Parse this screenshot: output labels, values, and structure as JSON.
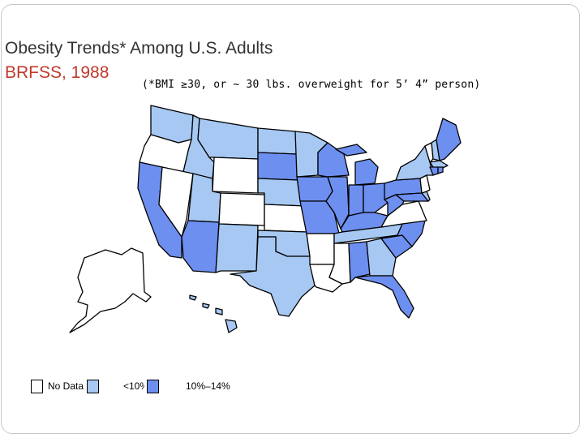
{
  "title": "Obesity Trends* Among U.S. Adults",
  "subtitle": "BRFSS, 1988",
  "note": "(*BMI ≥30, or ~ 30 lbs. overweight for 5’ 4” person)",
  "colors": {
    "no_data": "#ffffff",
    "under_10": "#a6c8f2",
    "10_14": "#6d8fef",
    "title_accent": "#c0392b"
  },
  "legend": [
    {
      "label": "No Data",
      "color": "#ffffff"
    },
    {
      "label": "<10%",
      "color": "#a6c8f2"
    },
    {
      "label": "10%–14%",
      "color": "#6d8fef"
    }
  ],
  "map_data": {
    "no_data": [
      "Oregon",
      "Nevada",
      "Wyoming",
      "Colorado",
      "Kansas",
      "Arkansas",
      "Mississippi",
      "Louisiana",
      "Alaska",
      "Virginia",
      "Vermont",
      "New Jersey"
    ],
    "under_10": [
      "Washington",
      "Idaho",
      "Montana",
      "Utah",
      "New Mexico",
      "Texas",
      "Oklahoma",
      "Nebraska",
      "North Dakota",
      "Minnesota",
      "Georgia",
      "Tennessee",
      "New York",
      "Hawaii",
      "New Hampshire",
      "Massachusetts",
      "Delaware"
    ],
    "10_14": [
      "California",
      "Arizona",
      "South Dakota",
      "Iowa",
      "Missouri",
      "Wisconsin",
      "Michigan",
      "Illinois",
      "Indiana",
      "Ohio",
      "Kentucky",
      "West Virginia",
      "Pennsylvania",
      "Maryland",
      "North Carolina",
      "South Carolina",
      "Alabama",
      "Florida",
      "Maine",
      "Connecticut",
      "Rhode Island"
    ]
  }
}
